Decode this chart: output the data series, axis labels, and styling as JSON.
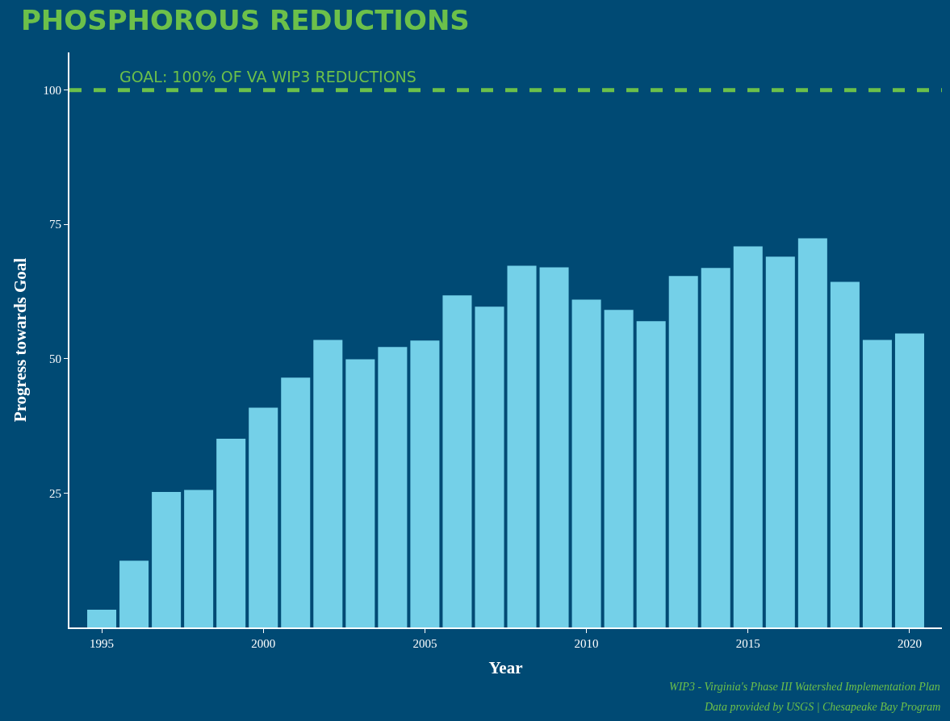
{
  "chart_data": {
    "type": "bar",
    "title": "PHOSPHOROUS REDUCTIONS",
    "xlabel": "Year",
    "ylabel": "Progress towards Goal",
    "x": [
      1995,
      1996,
      1997,
      1998,
      1999,
      2000,
      2001,
      2002,
      2003,
      2004,
      2005,
      2006,
      2007,
      2008,
      2009,
      2010,
      2011,
      2012,
      2013,
      2014,
      2015,
      2016,
      2017,
      2018,
      2019,
      2020
    ],
    "values": [
      3.3,
      12.4,
      25.2,
      25.6,
      35.1,
      40.9,
      46.5,
      53.5,
      49.9,
      52.2,
      53.4,
      61.8,
      59.7,
      67.3,
      67.0,
      61.0,
      59.1,
      57.0,
      65.4,
      66.9,
      70.9,
      69.0,
      72.4,
      64.3,
      53.5,
      54.7
    ],
    "color": "#74d0e8",
    "xlim": [
      1994,
      2021
    ],
    "xticks": [
      1995,
      2000,
      2005,
      2010,
      2015,
      2020
    ],
    "ylim": [
      0,
      107
    ],
    "yticks": [
      25,
      50,
      75,
      100
    ],
    "ref_lines": [
      {
        "axis": "y",
        "value": 100,
        "label": "GOAL: 100% OF VA WIP3 REDUCTIONS",
        "color": "#6cc04a",
        "line_style": "dashed"
      }
    ],
    "annotations": [
      "WIP3 - Virginia's Phase III Watershed Implementation Plan",
      "Data provided by USGS | Chesapeake Bay Program"
    ],
    "grid": false
  }
}
